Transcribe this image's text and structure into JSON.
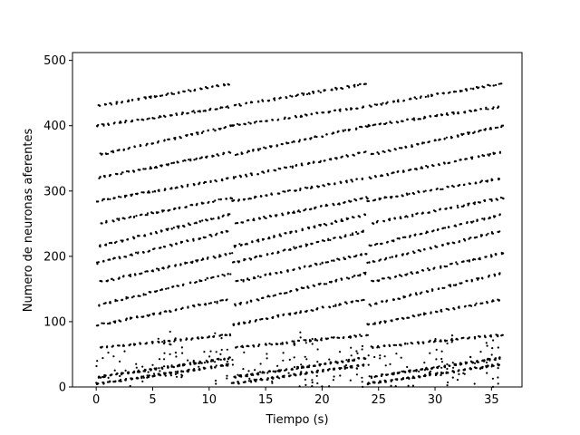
{
  "chart_data": {
    "type": "scatter",
    "title": "",
    "xlabel": "Tiempo (s)",
    "ylabel": "Numero de neuronas aferentes",
    "xlim": [
      -2.1,
      37.7
    ],
    "ylim": [
      0,
      512
    ],
    "xticks": [
      0,
      5,
      10,
      15,
      20,
      25,
      30,
      35
    ],
    "yticks": [
      0,
      100,
      200,
      300,
      400,
      500
    ],
    "grid": false,
    "legend": "none",
    "marker_color": "#000000",
    "pattern": {
      "cycle_period_s": 12,
      "cycles": 3,
      "burst_interval_s": 0.5,
      "band_neurons": [
        [
          5,
          35
        ],
        [
          15,
          45
        ],
        [
          60,
          80
        ],
        [
          95,
          135
        ],
        [
          125,
          175
        ],
        [
          160,
          205
        ],
        [
          190,
          240
        ],
        [
          215,
          265
        ],
        [
          250,
          290
        ],
        [
          285,
          320
        ],
        [
          320,
          360
        ],
        [
          355,
          400
        ],
        [
          400,
          430
        ],
        [
          430,
          465
        ]
      ]
    }
  }
}
